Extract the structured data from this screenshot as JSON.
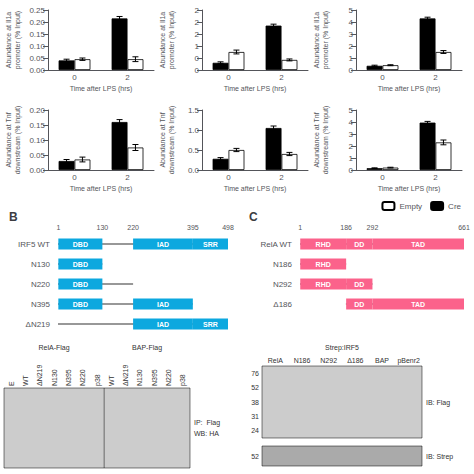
{
  "chart_data": [
    {
      "type": "bar",
      "ylabel": "Abundance at Il1a\npromoter (% Input)",
      "xlabel": "Time after LPS (hrs)",
      "categories": [
        "0",
        "2"
      ],
      "ylim": [
        0,
        0.25
      ],
      "yticks": [
        {
          "value": 0,
          "label": "0.00"
        },
        0.05,
        {
          "value": 0.1,
          "label": "0.10"
        },
        0.15,
        {
          "value": 0.2,
          "label": "0.20"
        },
        0.25
      ],
      "grid": false,
      "series": [
        {
          "name": "Cre",
          "color": "#000000",
          "values": [
            0.04,
            0.215
          ],
          "errors": [
            0.005,
            0.008
          ]
        },
        {
          "name": "Empty",
          "color": "#ffffff",
          "values": [
            0.045,
            0.045
          ],
          "errors": [
            0.005,
            0.01
          ]
        }
      ]
    },
    {
      "type": "bar",
      "ylabel": "Abundance at Il1a\npromoter (% Input)",
      "xlabel": "Time after LPS (hrs)",
      "categories": [
        "0",
        "2"
      ],
      "ylim": [
        0,
        2.5
      ],
      "yticks": [
        0,
        {
          "value": 0.5,
          "label": "0"
        },
        1,
        {
          "value": 1.5,
          "label": "2"
        },
        2,
        {
          "value": 2.5,
          "label": "2"
        }
      ],
      "grid": false,
      "series": [
        {
          "name": "Cre",
          "color": "#000000",
          "values": [
            0.3,
            1.85
          ],
          "errors": [
            0.04,
            0.06
          ]
        },
        {
          "name": "Empty",
          "color": "#ffffff",
          "values": [
            0.75,
            0.42
          ],
          "errors": [
            0.08,
            0.04
          ]
        }
      ]
    },
    {
      "type": "bar",
      "ylabel": "Abundance at Il1a\npromoter (% Input)",
      "xlabel": "Time after LPS (hrs)",
      "categories": [
        "0",
        "2"
      ],
      "ylim": [
        0,
        5
      ],
      "yticks": [
        0,
        1,
        2,
        3,
        4,
        5
      ],
      "grid": false,
      "series": [
        {
          "name": "Cre",
          "color": "#000000",
          "values": [
            0.35,
            4.3
          ],
          "errors": [
            0.05,
            0.1
          ]
        },
        {
          "name": "Empty",
          "color": "#ffffff",
          "values": [
            0.4,
            1.5
          ],
          "errors": [
            0.04,
            0.12
          ]
        }
      ]
    },
    {
      "type": "bar",
      "ylabel": "Abundance at Tnf\ndownstream (% Input)",
      "xlabel": "Time after LPS (hrs)",
      "categories": [
        "0",
        "2"
      ],
      "ylim": [
        0,
        0.2
      ],
      "yticks": [
        {
          "value": 0,
          "label": "0.00"
        },
        0.05,
        {
          "value": 0.1,
          "label": "0.10"
        },
        0.15,
        {
          "value": 0.2,
          "label": "0.20"
        }
      ],
      "grid": false,
      "series": [
        {
          "name": "Cre",
          "color": "#000000",
          "values": [
            0.03,
            0.16
          ],
          "errors": [
            0.005,
            0.008
          ]
        },
        {
          "name": "Empty",
          "color": "#ffffff",
          "values": [
            0.035,
            0.075
          ],
          "errors": [
            0.008,
            0.01
          ]
        }
      ]
    },
    {
      "type": "bar",
      "ylabel": "Abundance at Tnf\ndownstream (% Input)",
      "xlabel": "Time after LPS (hrs)",
      "categories": [
        "0",
        "2"
      ],
      "ylim": [
        0,
        1.5
      ],
      "yticks": [
        {
          "value": 0,
          "label": "0.0"
        },
        0.5,
        {
          "value": 1,
          "label": "1.0"
        },
        1.5
      ],
      "grid": false,
      "series": [
        {
          "name": "Cre",
          "color": "#000000",
          "values": [
            0.28,
            1.05
          ],
          "errors": [
            0.03,
            0.05
          ]
        },
        {
          "name": "Empty",
          "color": "#ffffff",
          "values": [
            0.5,
            0.4
          ],
          "errors": [
            0.04,
            0.04
          ]
        }
      ]
    },
    {
      "type": "bar",
      "ylabel": "Abundance at Tnf\ndownstream (% Input)",
      "xlabel": "Time after LPS (hrs)",
      "categories": [
        "0",
        "2"
      ],
      "ylim": [
        0,
        5
      ],
      "yticks": [
        0,
        1,
        2,
        3,
        4,
        5
      ],
      "grid": false,
      "legend": "right",
      "series": [
        {
          "name": "Cre",
          "color": "#000000",
          "values": [
            0.15,
            3.95
          ],
          "errors": [
            0.03,
            0.1
          ]
        },
        {
          "name": "Empty",
          "color": "#ffffff",
          "values": [
            0.2,
            2.3
          ],
          "errors": [
            0.03,
            0.2
          ]
        }
      ]
    },
    {
      "type": "domains",
      "title": "B",
      "categories": [
        "IRF5 WT",
        "N130",
        "N220",
        "N395",
        "ΔN219"
      ],
      "xlim": [
        0,
        498
      ],
      "xticks": [
        1,
        130,
        220,
        395,
        498
      ],
      "grid": false,
      "domains": [
        [
          {
            "label": "DBD",
            "x": 1,
            "w": 129
          },
          {
            "label": "IAD",
            "x": 220,
            "w": 175
          },
          {
            "label": "SRR",
            "x": 395,
            "w": 103
          }
        ],
        [
          {
            "label": "DBD",
            "x": 1,
            "w": 129
          }
        ],
        [
          {
            "label": "DBD",
            "x": 1,
            "w": 129
          }
        ],
        [
          {
            "label": "DBD",
            "x": 1,
            "w": 129
          },
          {
            "label": "IAD",
            "x": 220,
            "w": 175
          }
        ],
        [
          {
            "label": "IAD",
            "x": 220,
            "w": 175
          },
          {
            "label": "SRR",
            "x": 395,
            "w": 103
          }
        ]
      ],
      "line_ends": [
        498,
        130,
        220,
        395,
        498
      ]
    },
    {
      "type": "domains",
      "title": "C",
      "categories": [
        "RelA WT",
        "N186",
        "N292",
        "Δ186"
      ],
      "xlim": [
        0,
        661
      ],
      "xticks": [
        1,
        186,
        292,
        661
      ],
      "grid": false,
      "domains": [
        [
          {
            "label": "RHD",
            "x": 1,
            "w": 185
          },
          {
            "label": "DD",
            "x": 186,
            "w": 106
          },
          {
            "label": "TAD",
            "x": 292,
            "w": 369
          }
        ],
        [
          {
            "label": "RHD",
            "x": 1,
            "w": 185
          }
        ],
        [
          {
            "label": "RHD",
            "x": 1,
            "w": 185
          },
          {
            "label": "DD",
            "x": 186,
            "w": 106
          }
        ],
        [
          {
            "label": "DD",
            "x": 186,
            "w": 106
          },
          {
            "label": "TAD",
            "x": 292,
            "w": 369
          }
        ]
      ],
      "line_starts": [
        0,
        0,
        0,
        185
      ],
      "line_ends": [
        661,
        186,
        292,
        661
      ]
    },
    {
      "type": "blot",
      "sections": [
        {
          "title": "RelA-Flag",
          "categories": [
            "E",
            "WT",
            "ΔN219",
            "N130",
            "N395",
            "N220",
            "p38"
          ]
        },
        {
          "title": "BAP-Flag",
          "categories": [
            "WT",
            "ΔN219",
            "N130",
            "N395",
            "N220",
            "p38"
          ]
        }
      ],
      "annotations": [
        "IP:  Flag",
        "WB: HA"
      ]
    },
    {
      "type": "blot",
      "sections": [
        {
          "title": "Strep:IRF5",
          "categories": [
            "RelA",
            "N186",
            "N292",
            "Δ186",
            "BAP",
            "pBenr2"
          ]
        }
      ],
      "markers": [
        76,
        52,
        38,
        31,
        24
      ],
      "annotations": [
        "IB: Flag"
      ],
      "strip": {
        "markers": [
          52
        ],
        "annotations": [
          "IB: Strep"
        ]
      }
    }
  ]
}
